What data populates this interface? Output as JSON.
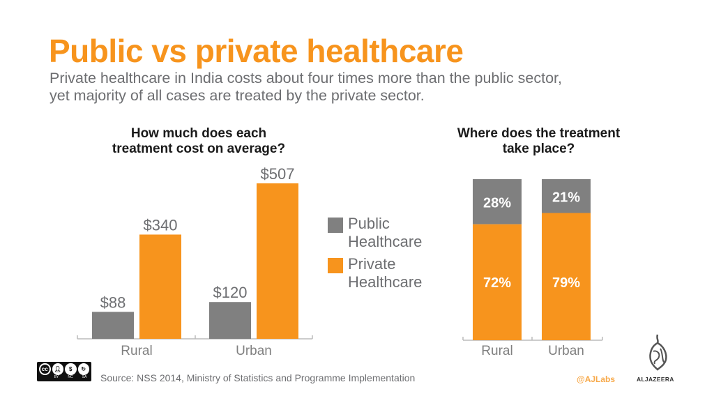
{
  "header": {
    "title": "Public vs private healthcare",
    "subtitle_line1": "Private healthcare in India costs about four times more than the public sector,",
    "subtitle_line2": "yet majority of all cases are treated by the private sector."
  },
  "legend": {
    "items": [
      {
        "label": "Public Healthcare",
        "color": "#808080"
      },
      {
        "label": "Private Healthcare",
        "color": "#f7941d"
      }
    ]
  },
  "chart_data": [
    {
      "type": "bar",
      "title": "How much does each treatment cost on average?",
      "title_line1": "How much does each",
      "title_line2": "treatment cost on average?",
      "categories": [
        "Rural",
        "Urban"
      ],
      "series": [
        {
          "name": "Public Healthcare",
          "values": [
            88,
            120
          ],
          "labels": [
            "$88",
            "$120"
          ],
          "color": "#808080"
        },
        {
          "name": "Private Healthcare",
          "values": [
            340,
            507
          ],
          "labels": [
            "$340",
            "$507"
          ],
          "color": "#f7941d"
        }
      ],
      "unit": "USD",
      "ylim": [
        0,
        507
      ],
      "grid": false,
      "legend_position": "right"
    },
    {
      "type": "bar",
      "stacked": true,
      "title": "Where does the treatment take place?",
      "title_line1": "Where does the treatment",
      "title_line2": "take place?",
      "categories": [
        "Rural",
        "Urban"
      ],
      "series": [
        {
          "name": "Public Healthcare",
          "values": [
            28,
            21
          ],
          "labels": [
            "28%",
            "21%"
          ],
          "color": "#808080"
        },
        {
          "name": "Private Healthcare",
          "values": [
            72,
            79
          ],
          "labels": [
            "72%",
            "79%"
          ],
          "color": "#f7941d"
        }
      ],
      "unit": "percent",
      "ylim": [
        0,
        100
      ],
      "grid": false,
      "legend_position": "left"
    }
  ],
  "footer": {
    "license_tags": [
      "BY",
      "NC",
      "SA"
    ],
    "license_symbol": "cc",
    "source": "Source: NSS 2014, Ministry of Statistics and Programme Implementation",
    "credit": "@AJLabs",
    "brand": "ALJAZEERA"
  }
}
